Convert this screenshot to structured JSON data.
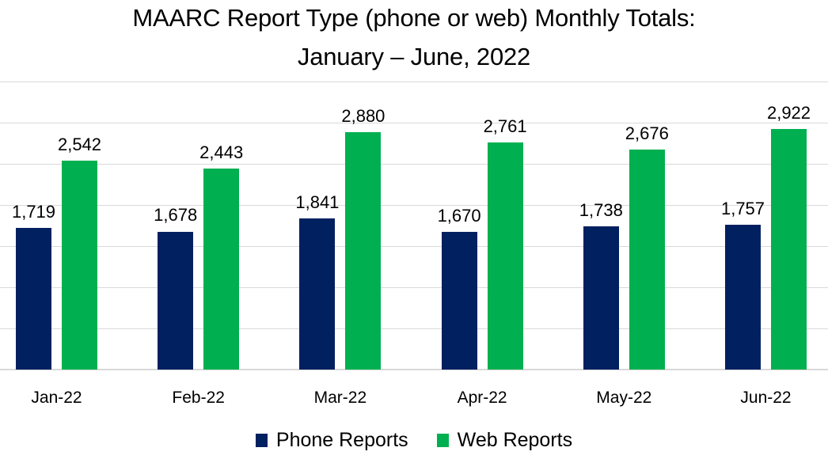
{
  "title": {
    "line1": "MAARC Report Type (phone or web) Monthly Totals:",
    "line2": "January – June, 2022"
  },
  "colors": {
    "phone": "#002060",
    "web": "#00B050",
    "gridline": "#d9d9d9"
  },
  "legend": {
    "items": [
      {
        "label": "Phone Reports",
        "color": "#002060"
      },
      {
        "label": "Web Reports",
        "color": "#00B050"
      }
    ]
  },
  "chart_data": {
    "type": "bar",
    "title": "MAARC Report Type (phone or web) Monthly Totals: January – June, 2022",
    "xlabel": "",
    "ylabel": "",
    "categories": [
      "Jan-22",
      "Feb-22",
      "Mar-22",
      "Apr-22",
      "May-22",
      "Jun-22"
    ],
    "series": [
      {
        "name": "Phone Reports",
        "color": "#002060",
        "values": [
          1719,
          1678,
          1841,
          1670,
          1738,
          1757
        ],
        "labels": [
          "1,719",
          "1,678",
          "1,841",
          "1,670",
          "1,738",
          "1,757"
        ]
      },
      {
        "name": "Web Reports",
        "color": "#00B050",
        "values": [
          2542,
          2443,
          2880,
          2761,
          2676,
          2922
        ],
        "labels": [
          "2,542",
          "2,443",
          "2,880",
          "2,761",
          "2,676",
          "2,922"
        ]
      }
    ],
    "ylim": [
      0,
      3500
    ],
    "ytick_step": 500,
    "y_axis_labels_visible": false,
    "grid": true,
    "data_labels": true,
    "legend_position": "bottom"
  }
}
